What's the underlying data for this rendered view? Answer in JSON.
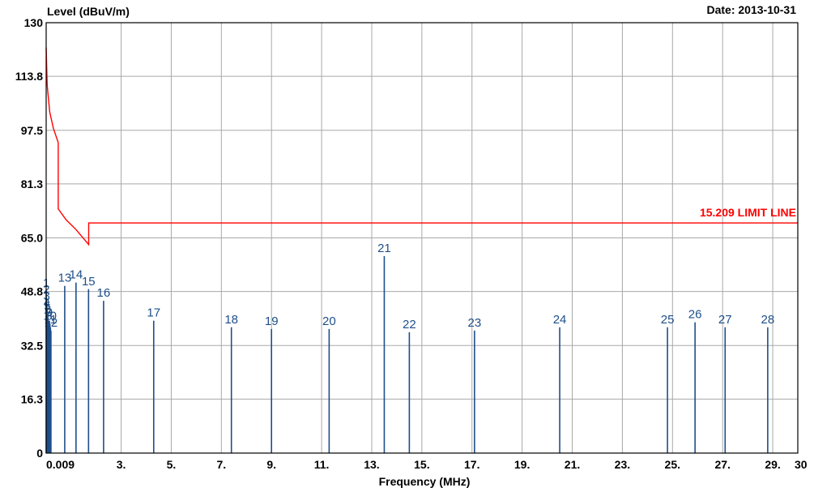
{
  "chart_data": {
    "type": "line",
    "ylabel": "Level (dBuV/m)",
    "date": "Date: 2013-10-31",
    "xlabel": "Frequency (MHz)",
    "ylim": [
      0,
      130
    ],
    "xlim": [
      0.009,
      30
    ],
    "grid": true,
    "y_ticks": [
      {
        "value": 0,
        "label": "0"
      },
      {
        "value": 16.3,
        "label": "16.3"
      },
      {
        "value": 32.5,
        "label": "32.5"
      },
      {
        "value": 48.8,
        "label": "48.8"
      },
      {
        "value": 65.0,
        "label": "65.0"
      },
      {
        "value": 81.3,
        "label": "81.3"
      },
      {
        "value": 97.5,
        "label": "97.5"
      },
      {
        "value": 113.8,
        "label": "113.8"
      },
      {
        "value": 130,
        "label": "130"
      }
    ],
    "x_ticks": [
      {
        "value": 0.009,
        "label": "0.009"
      },
      {
        "value": 3,
        "label": "3."
      },
      {
        "value": 5,
        "label": "5."
      },
      {
        "value": 7,
        "label": "7."
      },
      {
        "value": 9,
        "label": "9."
      },
      {
        "value": 11,
        "label": "11."
      },
      {
        "value": 13,
        "label": "13."
      },
      {
        "value": 15,
        "label": "15."
      },
      {
        "value": 17,
        "label": "17."
      },
      {
        "value": 19,
        "label": "19."
      },
      {
        "value": 21,
        "label": "21."
      },
      {
        "value": 23,
        "label": "23."
      },
      {
        "value": 25,
        "label": "25."
      },
      {
        "value": 27,
        "label": "27."
      },
      {
        "value": 29,
        "label": "29."
      },
      {
        "value": 30,
        "label": "30"
      }
    ],
    "limit_line": {
      "name": "15.209 LIMIT LINE",
      "color": "#ff0000",
      "points": [
        [
          0.009,
          122.5
        ],
        [
          0.05,
          111
        ],
        [
          0.15,
          103
        ],
        [
          0.3,
          98
        ],
        [
          0.49,
          93.8
        ],
        [
          0.49,
          73.8
        ],
        [
          0.8,
          70.5
        ],
        [
          1.2,
          67.5
        ],
        [
          1.705,
          63.0
        ],
        [
          1.705,
          69.5
        ],
        [
          30,
          69.5
        ]
      ]
    },
    "markers": {
      "color": "#1f4f8a",
      "points": [
        {
          "label": "1",
          "x": 0.01,
          "y": 49
        },
        {
          "label": "2",
          "x": 0.02,
          "y": 47
        },
        {
          "label": "3",
          "x": 0.03,
          "y": 45
        },
        {
          "label": "4",
          "x": 0.04,
          "y": 43
        },
        {
          "label": "5",
          "x": 0.06,
          "y": 42
        },
        {
          "label": "6",
          "x": 0.08,
          "y": 41
        },
        {
          "label": "7",
          "x": 0.1,
          "y": 40
        },
        {
          "label": "8",
          "x": 0.12,
          "y": 39
        },
        {
          "label": "9",
          "x": 0.14,
          "y": 40
        },
        {
          "label": "10",
          "x": 0.16,
          "y": 39
        },
        {
          "label": "11",
          "x": 0.18,
          "y": 38
        },
        {
          "label": "12",
          "x": 0.2,
          "y": 37
        },
        {
          "label": "13",
          "x": 0.75,
          "y": 50.5
        },
        {
          "label": "14",
          "x": 1.2,
          "y": 51.5
        },
        {
          "label": "15",
          "x": 1.7,
          "y": 49.5
        },
        {
          "label": "16",
          "x": 2.3,
          "y": 46
        },
        {
          "label": "17",
          "x": 4.3,
          "y": 40
        },
        {
          "label": "18",
          "x": 7.4,
          "y": 38
        },
        {
          "label": "19",
          "x": 9.0,
          "y": 37.5
        },
        {
          "label": "20",
          "x": 11.3,
          "y": 37.5
        },
        {
          "label": "21",
          "x": 13.5,
          "y": 59.5
        },
        {
          "label": "22",
          "x": 14.5,
          "y": 36.5
        },
        {
          "label": "23",
          "x": 17.1,
          "y": 37
        },
        {
          "label": "24",
          "x": 20.5,
          "y": 38
        },
        {
          "label": "25",
          "x": 24.8,
          "y": 38
        },
        {
          "label": "26",
          "x": 25.9,
          "y": 39.5
        },
        {
          "label": "27",
          "x": 27.1,
          "y": 38
        },
        {
          "label": "28",
          "x": 28.8,
          "y": 38
        }
      ]
    }
  }
}
